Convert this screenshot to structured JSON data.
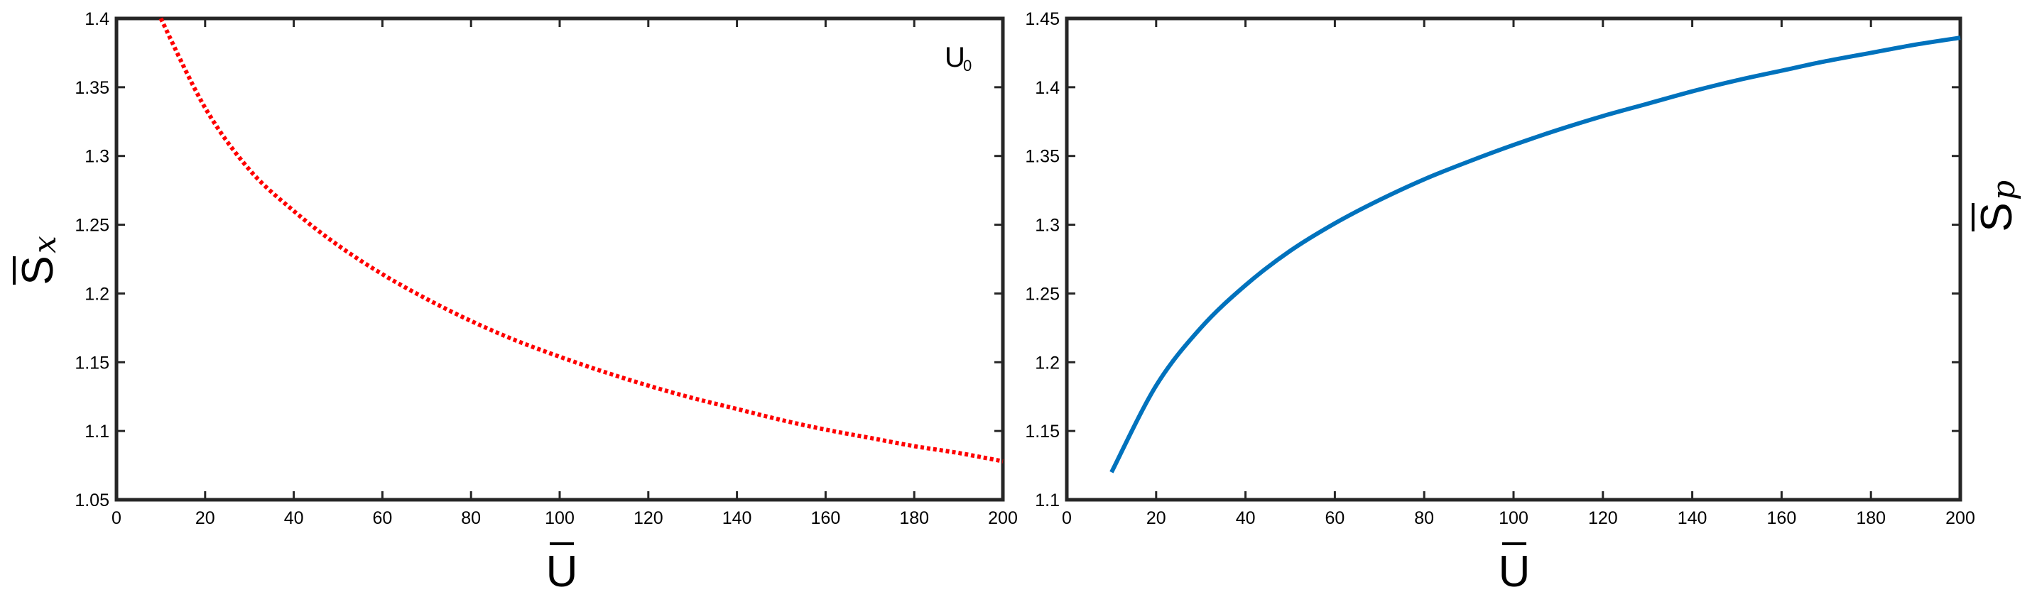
{
  "colors": {
    "series_left": "#ff0000",
    "series_right": "#0072bd",
    "axes": "#262626"
  },
  "chart_data": [
    {
      "type": "line",
      "line_style": "dotted",
      "xlabel": "U",
      "ylabel": {
        "base": "S",
        "sub": "x"
      },
      "annotation": {
        "base": "U",
        "sub": "0"
      },
      "xlim": [
        0,
        200
      ],
      "ylim": [
        1.05,
        1.4
      ],
      "xticks": [
        "0",
        "20",
        "40",
        "60",
        "80",
        "100",
        "120",
        "140",
        "160",
        "180",
        "200"
      ],
      "yticks": [
        "1.05",
        "1.1",
        "1.15",
        "1.2",
        "1.25",
        "1.3",
        "1.35",
        "1.4"
      ],
      "grid": false,
      "series": [
        {
          "x": [
            10,
            20,
            30,
            40,
            50,
            60,
            70,
            80,
            90,
            100,
            110,
            120,
            130,
            140,
            150,
            160,
            170,
            180,
            190,
            200
          ],
          "y": [
            1.4,
            1.335,
            1.29,
            1.26,
            1.235,
            1.214,
            1.196,
            1.18,
            1.166,
            1.154,
            1.143,
            1.133,
            1.124,
            1.116,
            1.108,
            1.101,
            1.095,
            1.089,
            1.084,
            1.078
          ]
        }
      ]
    },
    {
      "type": "line",
      "line_style": "solid",
      "xlabel": "U",
      "ylabel": {
        "base": "S",
        "sub": "p"
      },
      "xlim": [
        0,
        200
      ],
      "ylim": [
        1.1,
        1.45
      ],
      "xticks": [
        "0",
        "20",
        "40",
        "60",
        "80",
        "100",
        "120",
        "140",
        "160",
        "180",
        "200"
      ],
      "yticks": [
        "1.1",
        "1.15",
        "1.2",
        "1.25",
        "1.3",
        "1.35",
        "1.4",
        "1.45"
      ],
      "yaxis_label_side": "right",
      "grid": false,
      "series": [
        {
          "x": [
            10,
            20,
            30,
            40,
            50,
            60,
            70,
            80,
            90,
            100,
            110,
            120,
            130,
            140,
            150,
            160,
            170,
            180,
            190,
            200
          ],
          "y": [
            1.12,
            1.183,
            1.225,
            1.256,
            1.281,
            1.301,
            1.318,
            1.333,
            1.346,
            1.358,
            1.369,
            1.379,
            1.388,
            1.397,
            1.405,
            1.412,
            1.419,
            1.425,
            1.431,
            1.436
          ]
        }
      ]
    }
  ]
}
